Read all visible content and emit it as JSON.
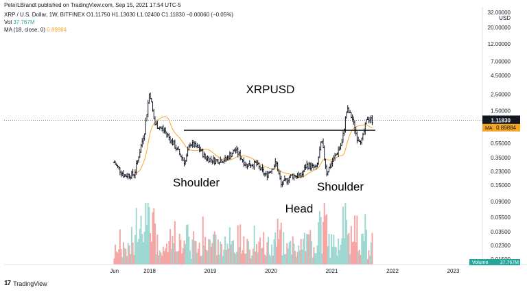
{
  "header": {
    "published": "PeterLBrandt published on TradingView.com, Sep 15, 2021 17:54 UTC-5",
    "ohlc_line": "XRP / U.S. Dollar, 1W, BITFINEX  O1.11750  H1.13030  L1.02400  C1.11830  −0.00060 (−0.05%)",
    "vol_label": "Vol",
    "vol_value": "37.767M",
    "ma_label": "MA (18, close, 0)",
    "ma_value": "0.89884"
  },
  "footer": {
    "logo_glyph": "17",
    "brand": "TradingView"
  },
  "colors": {
    "up": "#26a69a",
    "down": "#ef5350",
    "bar": "#131722",
    "ma": "#f5a623",
    "vol_up": "#9fd8d2",
    "vol_down": "#f5a6a4",
    "vol_badge": "#26a69a"
  },
  "chart_data": {
    "type": "line",
    "title": "XRPUSD",
    "annotations": [
      "Shoulder",
      "Head",
      "Shoulder"
    ],
    "neckline_price": 0.82,
    "price_axis": {
      "scale": "log",
      "currency": "USD",
      "ticks": [
        "32.00000",
        "20.00000",
        "12.00000",
        "7.00000",
        "4.50000",
        "2.50000",
        "1.50000",
        "0.90000",
        "0.55000",
        "0.35000",
        "0.23000",
        "0.15000",
        "0.09000",
        "0.05500",
        "0.03500",
        "0.02300",
        "0.01500"
      ],
      "tick_values": [
        32,
        20,
        12,
        7,
        4.5,
        2.5,
        1.5,
        0.9,
        0.55,
        0.35,
        0.23,
        0.15,
        0.09,
        0.055,
        0.035,
        0.023,
        0.015
      ],
      "last_price_label": "1.11830",
      "last_price_sub": "4d 2h",
      "last_price": 1.1183,
      "ma_tag": "MA",
      "ma_value_label": "0.89884",
      "ma_value": 0.89884,
      "volume_tag": "Volume",
      "volume_value": "37.767M"
    },
    "time_axis": {
      "labels": [
        "Jun",
        "2018",
        "2019",
        "2020",
        "2021",
        "2022",
        "2023"
      ]
    },
    "price_path": [
      [
        "2017-06",
        0.3
      ],
      [
        "2017-08",
        0.2
      ],
      [
        "2017-10",
        0.21
      ],
      [
        "2017-12",
        0.8
      ],
      [
        "2018-01",
        2.8
      ],
      [
        "2018-02",
        1.0
      ],
      [
        "2018-04",
        0.8
      ],
      [
        "2018-06",
        0.5
      ],
      [
        "2018-08",
        0.3
      ],
      [
        "2018-09",
        0.55
      ],
      [
        "2018-11",
        0.45
      ],
      [
        "2018-12",
        0.35
      ],
      [
        "2019-02",
        0.32
      ],
      [
        "2019-04",
        0.33
      ],
      [
        "2019-06",
        0.45
      ],
      [
        "2019-08",
        0.28
      ],
      [
        "2019-10",
        0.29
      ],
      [
        "2019-12",
        0.2
      ],
      [
        "2020-02",
        0.3
      ],
      [
        "2020-03",
        0.15
      ],
      [
        "2020-05",
        0.2
      ],
      [
        "2020-07",
        0.2
      ],
      [
        "2020-08",
        0.28
      ],
      [
        "2020-10",
        0.25
      ],
      [
        "2020-11",
        0.6
      ],
      [
        "2020-12",
        0.22
      ],
      [
        "2021-01",
        0.3
      ],
      [
        "2021-03",
        0.55
      ],
      [
        "2021-04",
        1.6
      ],
      [
        "2021-05",
        1.2
      ],
      [
        "2021-06",
        0.65
      ],
      [
        "2021-07",
        0.6
      ],
      [
        "2021-08",
        1.2
      ],
      [
        "2021-09",
        1.12
      ]
    ]
  }
}
